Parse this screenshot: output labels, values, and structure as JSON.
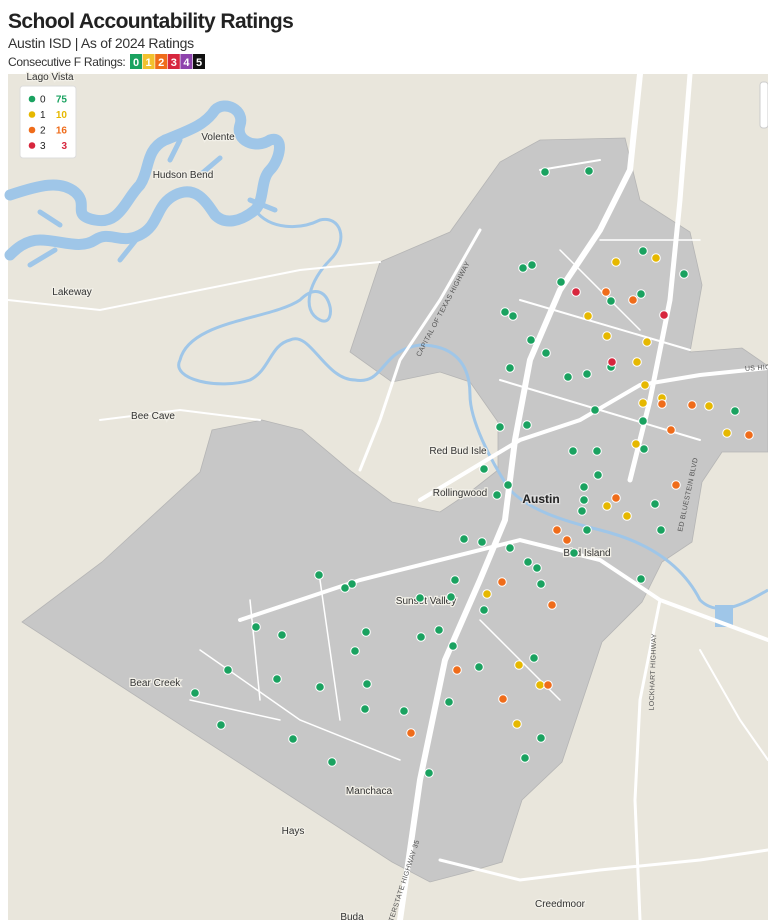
{
  "header": {
    "title": "School Accountability Ratings",
    "subtitle": "Austin ISD | As of 2024 Ratings",
    "scale_label": "Consecutive F Ratings:",
    "scale": [
      {
        "label": "0",
        "color": "#1aa260"
      },
      {
        "label": "1",
        "color": "#f2c12e"
      },
      {
        "label": "2",
        "color": "#ef6c1a"
      },
      {
        "label": "3",
        "color": "#d7263d"
      },
      {
        "label": "4",
        "color": "#8e44ad"
      },
      {
        "label": "5",
        "color": "#111111"
      }
    ]
  },
  "legend": {
    "items": [
      {
        "label": "0",
        "count": 75,
        "color": "#1aa260"
      },
      {
        "label": "1",
        "count": 10,
        "color": "#e6b800"
      },
      {
        "label": "2",
        "count": 16,
        "color": "#ef6c1a"
      },
      {
        "label": "3",
        "count": 3,
        "color": "#d7263d"
      }
    ]
  },
  "places": [
    "Lago Vista",
    "Volente",
    "Hudson Bend",
    "Lakeway",
    "Bee Cave",
    "Red Bud Isle",
    "Rollingwood",
    "Austin",
    "Bird Island",
    "Sunset Valley",
    "Bear Creek",
    "Manchaca",
    "Hays",
    "Creedmoor",
    "Buda"
  ],
  "roads": [
    "CAPITAL OF TEXAS HIGHWAY",
    "ED BLUESTEIN BLVD",
    "LOCKHART HIGHWAY",
    "INTERSTATE HIGHWAY 35",
    "US HIG"
  ]
}
